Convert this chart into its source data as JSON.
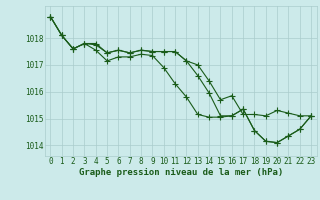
{
  "xlabel": "Graphe pression niveau de la mer (hPa)",
  "x": [
    0,
    1,
    2,
    3,
    4,
    5,
    6,
    7,
    8,
    9,
    10,
    11,
    12,
    13,
    14,
    15,
    16,
    17,
    18,
    19,
    20,
    21,
    22,
    23
  ],
  "line1": [
    1018.8,
    1018.1,
    1017.6,
    1017.8,
    1017.55,
    1017.15,
    1017.3,
    1017.3,
    1017.4,
    1017.35,
    1016.9,
    1016.3,
    1015.8,
    1015.15,
    1015.05,
    1015.05,
    1015.1,
    1015.35,
    1014.55,
    1014.15,
    1014.1,
    1014.35,
    1014.6,
    1015.1
  ],
  "line2": [
    1018.8,
    1018.1,
    1017.6,
    1017.8,
    1017.8,
    1017.45,
    1017.55,
    1017.45,
    1017.55,
    1017.5,
    1017.5,
    1017.5,
    1017.15,
    1017.0,
    1016.4,
    1015.7,
    1015.85,
    1015.15,
    1015.15,
    1015.1,
    1015.3,
    1015.2,
    1015.1,
    1015.1
  ],
  "line3": [
    1018.8,
    1018.1,
    1017.6,
    1017.8,
    1017.75,
    1017.45,
    1017.55,
    1017.45,
    1017.55,
    1017.5,
    1017.5,
    1017.5,
    1017.15,
    1016.6,
    1015.95,
    1015.1,
    1015.1,
    1015.35,
    1014.55,
    1014.15,
    1014.1,
    1014.35,
    1014.6,
    1015.1
  ],
  "line_color": "#1a5c1a",
  "bg_color": "#cceaea",
  "grid_color": "#aacccc",
  "text_color": "#1a5c1a",
  "ylim": [
    1013.6,
    1019.2
  ],
  "yticks": [
    1014,
    1015,
    1016,
    1017,
    1018
  ],
  "marker": "+",
  "markersize": 4,
  "linewidth": 0.8,
  "xlabel_fontsize": 6.5,
  "tick_fontsize": 5.5
}
